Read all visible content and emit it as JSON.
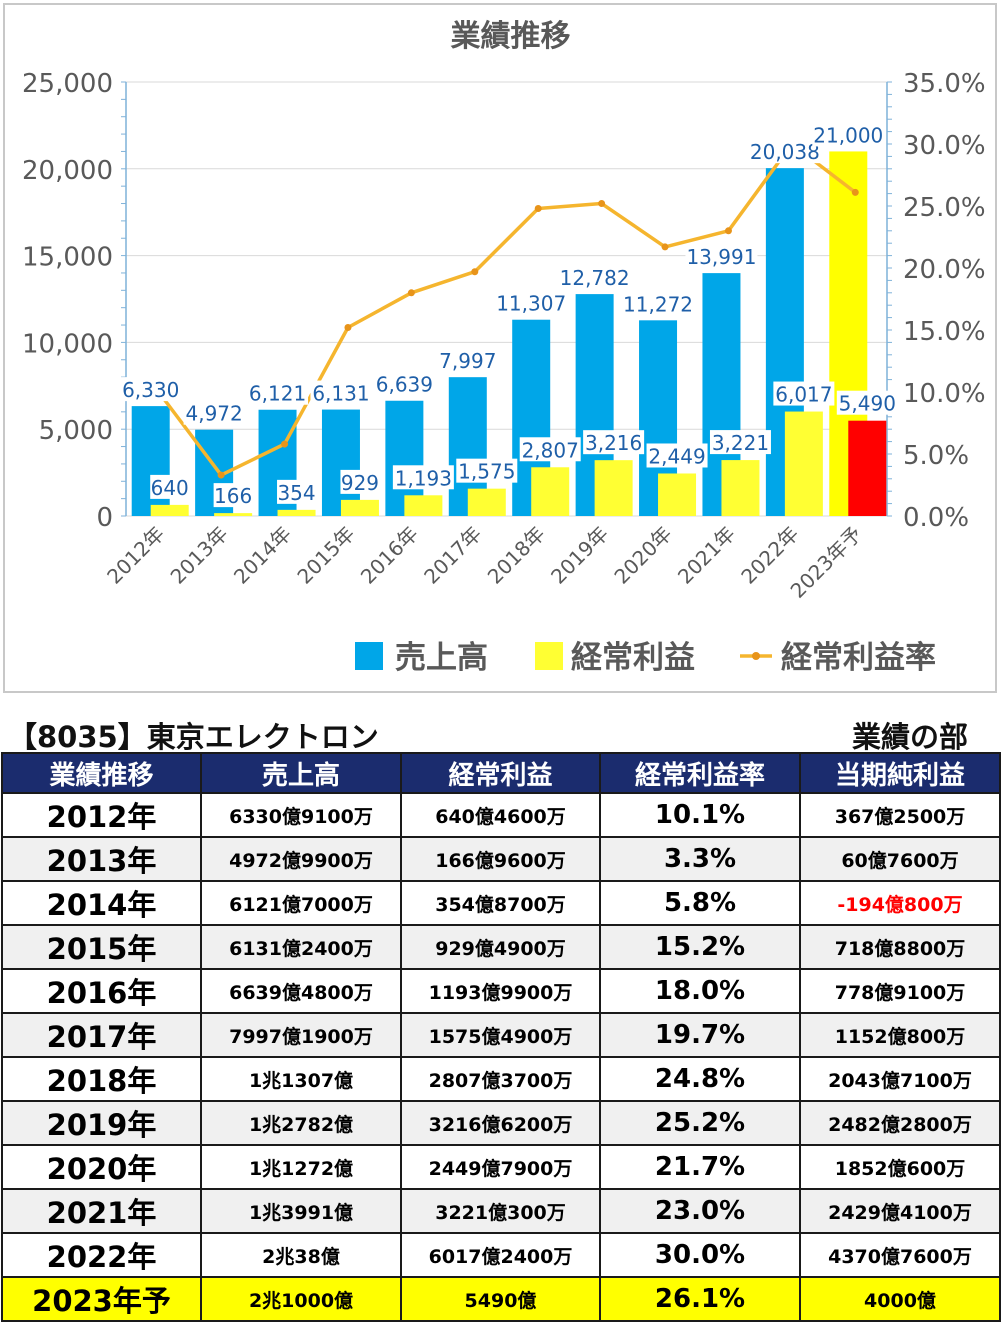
{
  "chart_data": {
    "type": "bar",
    "title": "業績推移",
    "categories": [
      "2012年",
      "2013年",
      "2014年",
      "2015年",
      "2016年",
      "2017年",
      "2018年",
      "2019年",
      "2020年",
      "2021年",
      "2022年",
      "2023年予"
    ],
    "series": [
      {
        "name": "売上高",
        "type": "bar",
        "axis": "left",
        "color": "#00a6e8",
        "values": [
          6330,
          4972,
          6121,
          6131,
          6639,
          7997,
          11307,
          12782,
          11272,
          13991,
          20038,
          21000
        ]
      },
      {
        "name": "経常利益",
        "type": "bar",
        "axis": "left",
        "color": "#ffff33",
        "values": [
          640,
          166,
          354,
          929,
          1193,
          1575,
          2807,
          3216,
          2449,
          3221,
          6017,
          5490
        ]
      },
      {
        "name": "経常利益率",
        "type": "line",
        "axis": "right",
        "color": "#f5b52e",
        "values": [
          10.1,
          3.3,
          5.8,
          15.2,
          18.0,
          19.7,
          24.8,
          25.2,
          21.7,
          23.0,
          30.0,
          26.1
        ]
      }
    ],
    "highlight": {
      "category_index": 11,
      "series": "売上高",
      "color": "#ffff00"
    },
    "highlight2": {
      "category_index": 11,
      "series": "経常利益",
      "color": "#ff0000"
    },
    "ylim": [
      0,
      25000
    ],
    "yticks": [
      "0",
      "5,000",
      "10,000",
      "15,000",
      "20,000",
      "25,000"
    ],
    "y2lim": [
      0,
      35
    ],
    "y2ticks": [
      "0.0%",
      "5.0%",
      "10.0%",
      "15.0%",
      "20.0%",
      "25.0%",
      "30.0%",
      "35.0%"
    ],
    "grid": true,
    "legend_position": "bottom",
    "data_labels": {
      "revenue": [
        "6,330",
        "4,972",
        "6,121",
        "6,131",
        "6,639",
        "7,997",
        "11,307",
        "12,782",
        "11,272",
        "13,991",
        "20,038",
        "21,000"
      ],
      "profit": [
        "640",
        "166",
        "354",
        "929",
        "1,193",
        "1,575",
        "2,807",
        "3,216",
        "2,449",
        "3,221",
        "6,017",
        "5,490"
      ]
    }
  },
  "heading": {
    "company": "【8035】東京エレクトロン",
    "section": "業績の部"
  },
  "table": {
    "headers": [
      "業績推移",
      "売上高",
      "経常利益",
      "経常利益率",
      "当期純利益"
    ],
    "rows": [
      [
        "2012年",
        "6330億9100万",
        "640億4600万",
        "10.1%",
        "367億2500万"
      ],
      [
        "2013年",
        "4972億9900万",
        "166億9600万",
        "3.3%",
        "60億7600万"
      ],
      [
        "2014年",
        "6121億7000万",
        "354億8700万",
        "5.8%",
        "-194億800万"
      ],
      [
        "2015年",
        "6131億2400万",
        "929億4900万",
        "15.2%",
        "718億8800万"
      ],
      [
        "2016年",
        "6639億4800万",
        "1193億9900万",
        "18.0%",
        "778億9100万"
      ],
      [
        "2017年",
        "7997億1900万",
        "1575億4900万",
        "19.7%",
        "1152億800万"
      ],
      [
        "2018年",
        "1兆1307億",
        "2807億3700万",
        "24.8%",
        "2043億7100万"
      ],
      [
        "2019年",
        "1兆2782億",
        "3216億6200万",
        "25.2%",
        "2482億2800万"
      ],
      [
        "2020年",
        "1兆1272億",
        "2449億7900万",
        "21.7%",
        "1852億600万"
      ],
      [
        "2021年",
        "1兆3991億",
        "3221億300万",
        "23.0%",
        "2429億4100万"
      ],
      [
        "2022年",
        "2兆38億",
        "6017億2400万",
        "30.0%",
        "4370億7600万"
      ],
      [
        "2023年予",
        "2兆1000億",
        "5490億",
        "26.1%",
        "4000億"
      ]
    ],
    "negative_color": "#ff0000",
    "header_bg": "#1b2c6e",
    "forecast_bg": "#ffff00"
  }
}
